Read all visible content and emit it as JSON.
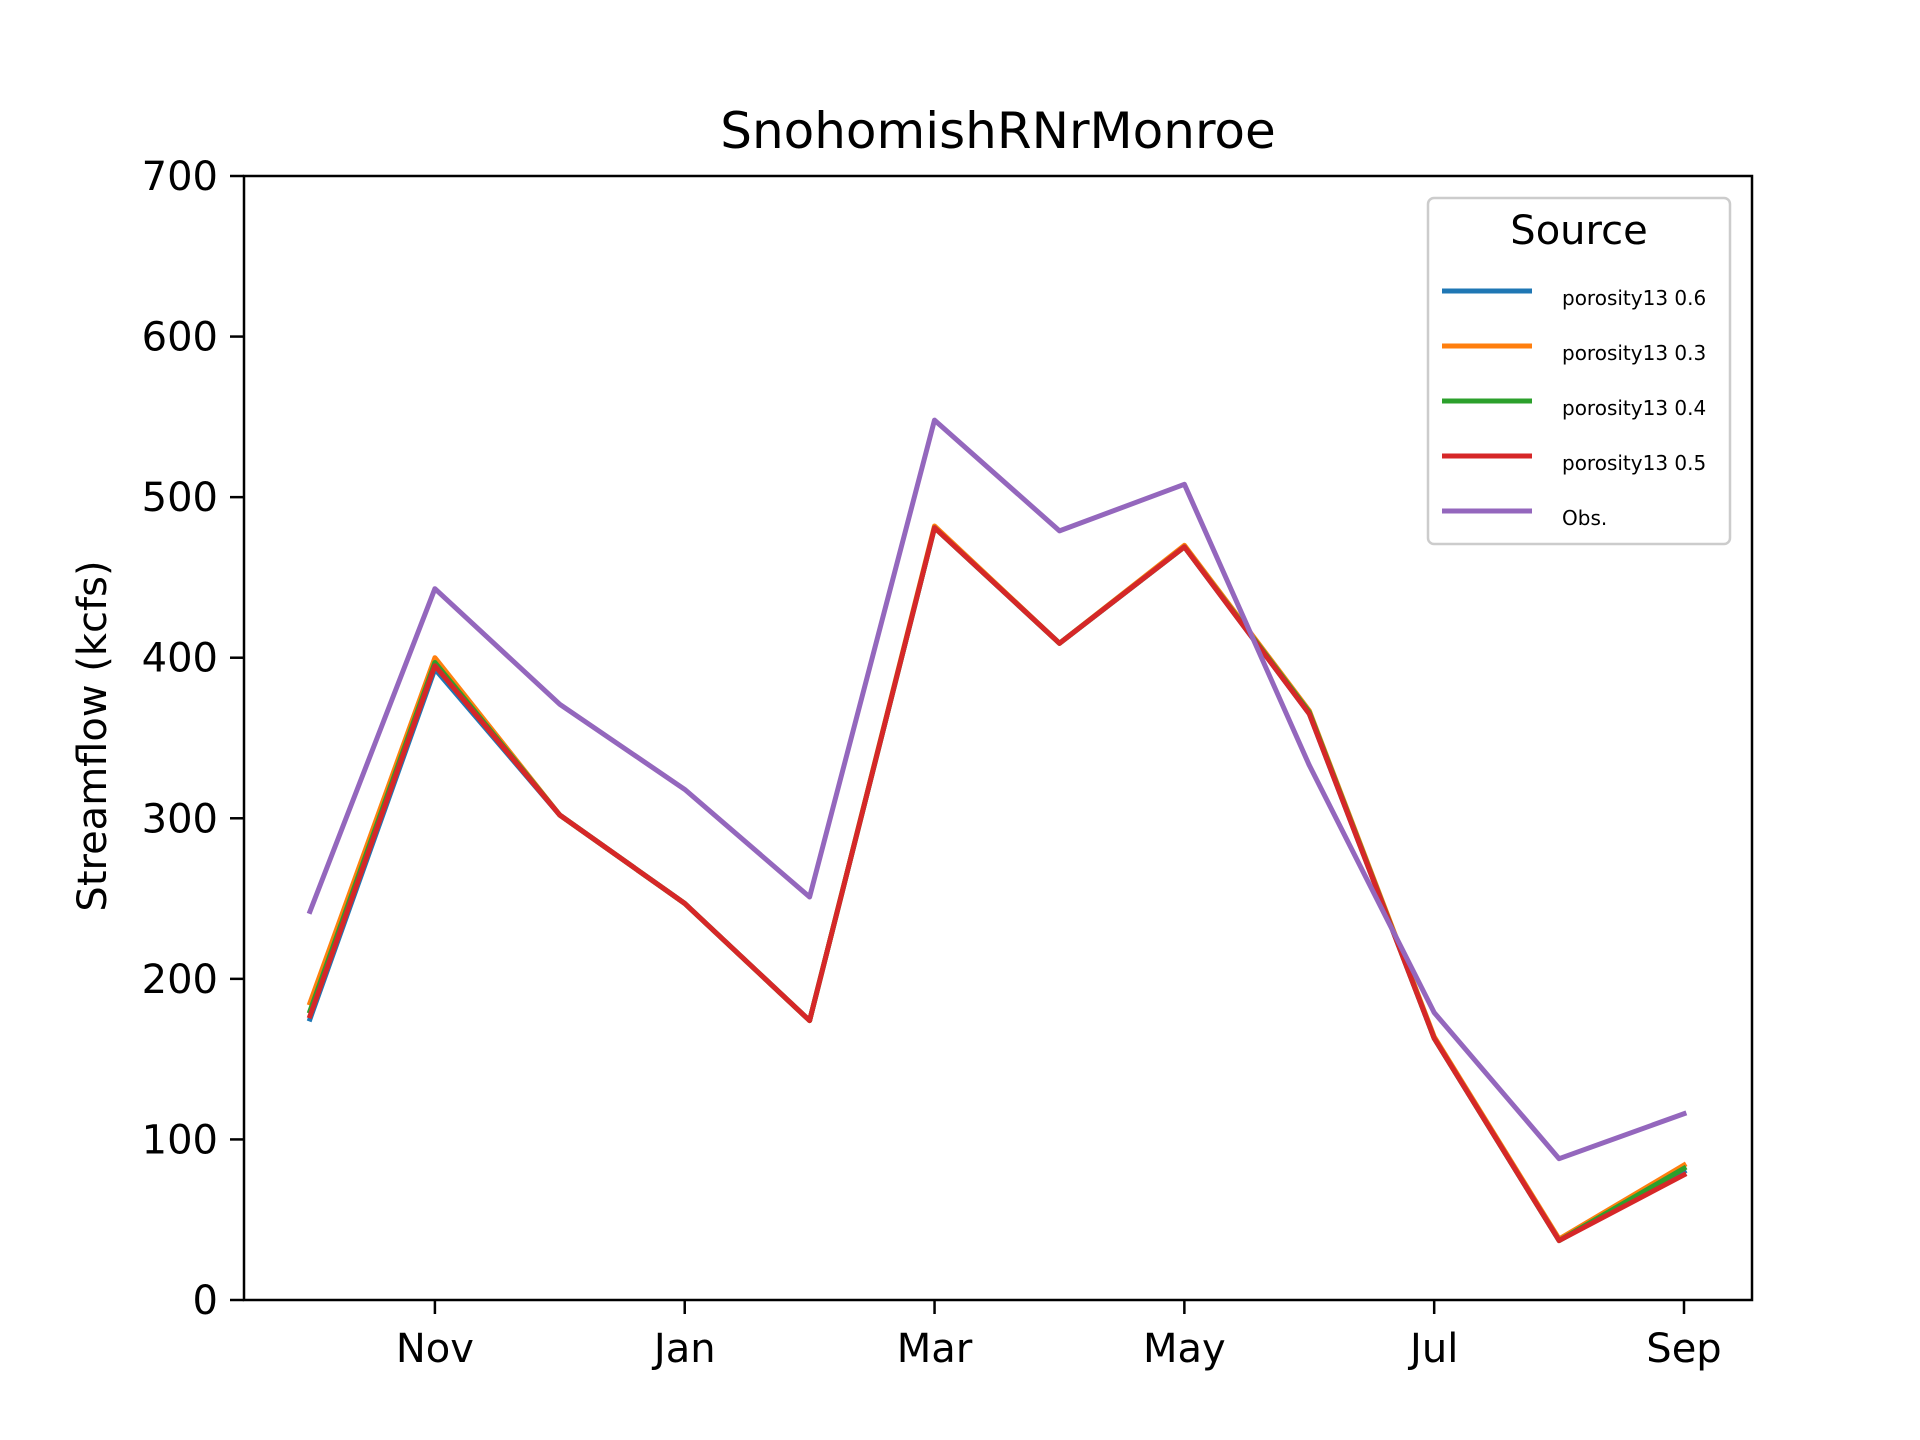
{
  "chart_data": {
    "type": "line",
    "title": "SnohomishRNrMonroe",
    "xlabel": "",
    "ylabel": "Streamflow (kcfs)",
    "ylim": [
      0,
      700
    ],
    "yticks": [
      0,
      100,
      200,
      300,
      400,
      500,
      600,
      700
    ],
    "x": [
      "Oct",
      "Nov",
      "Dec",
      "Jan",
      "Feb",
      "Mar",
      "Apr",
      "May",
      "Jun",
      "Jul",
      "Aug",
      "Sep"
    ],
    "xtick_labels": [
      "Nov",
      "Jan",
      "Mar",
      "May",
      "Jul",
      "Sep"
    ],
    "legend": {
      "title": "Source",
      "location": "upper right"
    },
    "grid": false,
    "series": [
      {
        "name": "porosity13 0.6",
        "color": "#1f77b4",
        "values": [
          175,
          393,
          302,
          247,
          174,
          481,
          409,
          469,
          365,
          163,
          37,
          80
        ]
      },
      {
        "name": "porosity13 0.3",
        "color": "#ff7f0e",
        "values": [
          185,
          400,
          302,
          247,
          174,
          482,
          409,
          470,
          367,
          164,
          38,
          84
        ]
      },
      {
        "name": "porosity13 0.4",
        "color": "#2ca02c",
        "values": [
          180,
          397,
          302,
          247,
          174,
          481,
          409,
          469,
          366,
          163,
          37,
          82
        ]
      },
      {
        "name": "porosity13 0.5",
        "color": "#d62728",
        "values": [
          177,
          395,
          302,
          247,
          174,
          481,
          409,
          469,
          365,
          163,
          37,
          78
        ]
      },
      {
        "name": "Obs.",
        "color": "#9467bd",
        "values": [
          242,
          443,
          371,
          318,
          251,
          548,
          479,
          508,
          333,
          179,
          88,
          116
        ]
      }
    ]
  }
}
